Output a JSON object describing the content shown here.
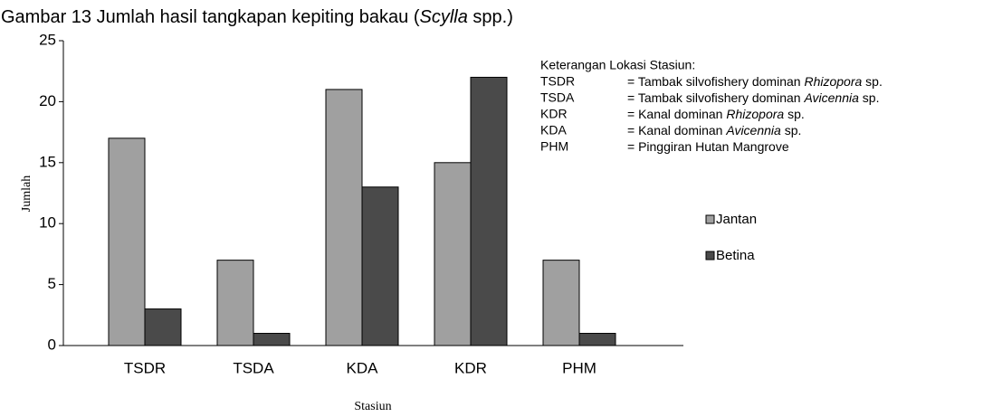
{
  "chart_data": {
    "type": "bar",
    "title": [
      {
        "text": "Gambar 13 Jumlah hasil tangkapan kepiting bakau ("
      },
      {
        "text": "Scylla",
        "italic": true
      },
      {
        "text": " spp.)"
      }
    ],
    "x_label": "Stasiun",
    "y_label": "Jumlah",
    "categories": [
      "TSDR",
      "TSDA",
      "KDA",
      "KDR",
      "PHM"
    ],
    "series": [
      {
        "name": "Jantan",
        "color": "#a0a0a0",
        "values": [
          17,
          7,
          21,
          15,
          7
        ]
      },
      {
        "name": "Betina",
        "color": "#4a4a4a",
        "values": [
          3,
          1,
          13,
          22,
          1
        ]
      }
    ],
    "ylim": [
      0,
      25
    ],
    "yticks": [
      0,
      5,
      10,
      15,
      20,
      25
    ],
    "grid": false,
    "notes": {
      "heading": "Keterangan Lokasi Stasiun:",
      "rows": [
        {
          "code": "TSDR",
          "desc": [
            {
              "text": "= Tambak silvofishery dominan "
            },
            {
              "text": "Rhizopora",
              "italic": true
            },
            {
              "text": " sp."
            }
          ]
        },
        {
          "code": "TSDA",
          "desc": [
            {
              "text": "= Tambak silvofishery dominan "
            },
            {
              "text": "Avicennia",
              "italic": true
            },
            {
              "text": " sp."
            }
          ]
        },
        {
          "code": "KDR",
          "desc": [
            {
              "text": "= Kanal dominan "
            },
            {
              "text": "Rhizopora",
              "italic": true
            },
            {
              "text": " sp."
            }
          ]
        },
        {
          "code": "KDA",
          "desc": [
            {
              "text": "= Kanal dominan "
            },
            {
              "text": "Avicennia",
              "italic": true
            },
            {
              "text": " sp."
            }
          ]
        },
        {
          "code": "PHM",
          "desc": [
            {
              "text": "= Pinggiran Hutan Mangrove"
            }
          ]
        }
      ]
    }
  }
}
